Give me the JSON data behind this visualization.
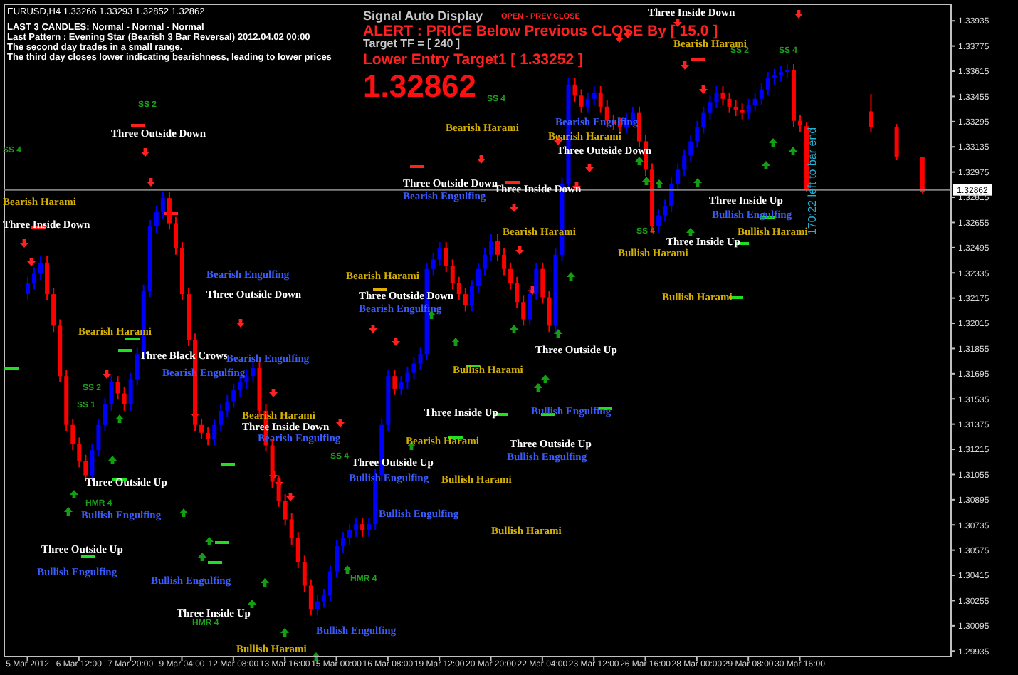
{
  "chart_data": {
    "type": "candlestick",
    "title": "EURUSD,H4  1.33266 1.33293 1.32852 1.32862",
    "categories": [
      "5 Mar 2012",
      null,
      null,
      null,
      null,
      null,
      null,
      null,
      "6 Mar 12:00",
      null,
      null,
      null,
      null,
      null,
      null,
      null,
      "7 Mar 20:00",
      null,
      null,
      null,
      null,
      null,
      null,
      null,
      "9 Mar 04:00",
      null,
      null,
      null,
      null,
      null,
      null,
      null,
      "12 Mar 08:00",
      null,
      null,
      null,
      null,
      null,
      null,
      null,
      "13 Mar 16:00",
      null,
      null,
      null,
      null,
      null,
      null,
      null,
      "15 Mar 00:00",
      null,
      null,
      null,
      null,
      null,
      null,
      null,
      "16 Mar 08:00",
      null,
      null,
      null,
      null,
      null,
      null,
      null,
      "19 Mar 12:00",
      null,
      null,
      null,
      null,
      null,
      null,
      null,
      "20 Mar 20:00",
      null,
      null,
      null,
      null,
      null,
      null,
      null,
      "22 Mar 04:00",
      null,
      null,
      null,
      null,
      null,
      null,
      null,
      "23 Mar 12:00",
      null,
      null,
      null,
      null,
      null,
      null,
      null,
      "26 Mar 16:00",
      null,
      null,
      null,
      null,
      null,
      null,
      null,
      "28 Mar 00:00",
      null,
      null,
      null,
      null,
      null,
      null,
      null,
      "29 Mar 08:00",
      null,
      null,
      null,
      null,
      null,
      null,
      null,
      "30 Mar 16:00",
      null,
      null,
      null,
      null,
      null,
      null,
      null,
      null,
      null,
      null,
      null,
      null,
      null,
      null,
      null,
      null,
      null,
      null,
      null,
      null,
      null,
      null,
      null
    ],
    "ohlc": [
      [
        1.322,
        1.3231,
        1.3216,
        1.3227
      ],
      [
        1.3227,
        1.3237,
        1.3223,
        1.3233
      ],
      [
        1.3233,
        1.3244,
        1.3229,
        1.324
      ],
      [
        1.324,
        1.3244,
        1.3216,
        1.322
      ],
      [
        1.322,
        1.3224,
        1.3196,
        1.32
      ],
      [
        1.32,
        1.3204,
        1.3164,
        1.3168
      ],
      [
        1.3168,
        1.3172,
        1.3133,
        1.3137
      ],
      [
        1.3137,
        1.3141,
        1.3121,
        1.3125
      ],
      [
        1.3125,
        1.3129,
        1.311,
        1.3114
      ],
      [
        1.3114,
        1.3118,
        1.3101,
        1.3105
      ],
      [
        1.3105,
        1.3125,
        1.3101,
        1.3121
      ],
      [
        1.3121,
        1.3141,
        1.3117,
        1.3137
      ],
      [
        1.3137,
        1.3154,
        1.3133,
        1.315
      ],
      [
        1.315,
        1.3168,
        1.3146,
        1.3164
      ],
      [
        1.3164,
        1.3168,
        1.3153,
        1.3157
      ],
      [
        1.3157,
        1.3161,
        1.3146,
        1.315
      ],
      [
        1.315,
        1.317,
        1.3146,
        1.3166
      ],
      [
        1.3166,
        1.3186,
        1.3162,
        1.3182
      ],
      [
        1.3182,
        1.3226,
        1.3178,
        1.3222
      ],
      [
        1.3222,
        1.3267,
        1.3218,
        1.3263
      ],
      [
        1.3263,
        1.3276,
        1.3259,
        1.3272
      ],
      [
        1.3272,
        1.3285,
        1.3268,
        1.3281
      ],
      [
        1.3281,
        1.3285,
        1.3261,
        1.3265
      ],
      [
        1.3265,
        1.3269,
        1.3245,
        1.3249
      ],
      [
        1.3249,
        1.3253,
        1.3216,
        1.322
      ],
      [
        1.322,
        1.3224,
        1.3187,
        1.3191
      ],
      [
        1.3191,
        1.3195,
        1.3133,
        1.3137
      ],
      [
        1.3137,
        1.3141,
        1.3128,
        1.3132
      ],
      [
        1.3132,
        1.3136,
        1.3124,
        1.3128
      ],
      [
        1.3128,
        1.3141,
        1.3124,
        1.3137
      ],
      [
        1.3137,
        1.315,
        1.3133,
        1.3146
      ],
      [
        1.3146,
        1.3156,
        1.3142,
        1.3152
      ],
      [
        1.3152,
        1.3163,
        1.3148,
        1.3159
      ],
      [
        1.3159,
        1.3168,
        1.3155,
        1.3164
      ],
      [
        1.3164,
        1.3172,
        1.316,
        1.3168
      ],
      [
        1.3168,
        1.3177,
        1.3164,
        1.3173
      ],
      [
        1.3173,
        1.3177,
        1.3142,
        1.3146
      ],
      [
        1.3146,
        1.315,
        1.312,
        1.3124
      ],
      [
        1.3124,
        1.3128,
        1.3097,
        1.3101
      ],
      [
        1.3101,
        1.3105,
        1.3085,
        1.3089
      ],
      [
        1.3089,
        1.3093,
        1.3073,
        1.3077
      ],
      [
        1.3077,
        1.3081,
        1.3061,
        1.3065
      ],
      [
        1.3065,
        1.3069,
        1.3046,
        1.305
      ],
      [
        1.305,
        1.3054,
        1.3031,
        1.3035
      ],
      [
        1.3035,
        1.3039,
        1.3016,
        1.302
      ],
      [
        1.302,
        1.3029,
        1.3016,
        1.3025
      ],
      [
        1.3025,
        1.3033,
        1.3021,
        1.3029
      ],
      [
        1.3029,
        1.3048,
        1.3025,
        1.3044
      ],
      [
        1.3044,
        1.3064,
        1.304,
        1.306
      ],
      [
        1.306,
        1.3069,
        1.3056,
        1.3065
      ],
      [
        1.3065,
        1.3074,
        1.3061,
        1.307
      ],
      [
        1.307,
        1.3078,
        1.3066,
        1.3074
      ],
      [
        1.3074,
        1.3078,
        1.3066,
        1.307
      ],
      [
        1.307,
        1.3078,
        1.3066,
        1.3074
      ],
      [
        1.3074,
        1.3109,
        1.307,
        1.3105
      ],
      [
        1.3105,
        1.3141,
        1.3101,
        1.3137
      ],
      [
        1.3137,
        1.3172,
        1.3133,
        1.3168
      ],
      [
        1.3168,
        1.3172,
        1.3156,
        1.316
      ],
      [
        1.316,
        1.3168,
        1.3156,
        1.3164
      ],
      [
        1.3164,
        1.3174,
        1.316,
        1.317
      ],
      [
        1.317,
        1.318,
        1.3166,
        1.3176
      ],
      [
        1.3176,
        1.3186,
        1.3172,
        1.3182
      ],
      [
        1.3182,
        1.324,
        1.3178,
        1.3236
      ],
      [
        1.3236,
        1.3246,
        1.3232,
        1.3242
      ],
      [
        1.3242,
        1.3253,
        1.3238,
        1.3249
      ],
      [
        1.3249,
        1.3253,
        1.3234,
        1.3238
      ],
      [
        1.3238,
        1.3242,
        1.3223,
        1.3227
      ],
      [
        1.3227,
        1.3231,
        1.3216,
        1.322
      ],
      [
        1.322,
        1.3224,
        1.3209,
        1.3213
      ],
      [
        1.3213,
        1.3229,
        1.3209,
        1.3225
      ],
      [
        1.3225,
        1.324,
        1.3221,
        1.3236
      ],
      [
        1.3236,
        1.3249,
        1.3232,
        1.3245
      ],
      [
        1.3245,
        1.3258,
        1.3241,
        1.3254
      ],
      [
        1.3254,
        1.3258,
        1.3241,
        1.3245
      ],
      [
        1.3245,
        1.3249,
        1.3232,
        1.3236
      ],
      [
        1.3236,
        1.324,
        1.3223,
        1.3227
      ],
      [
        1.3227,
        1.3231,
        1.3211,
        1.3215
      ],
      [
        1.3215,
        1.3219,
        1.32,
        1.3204
      ],
      [
        1.3204,
        1.3224,
        1.32,
        1.322
      ],
      [
        1.322,
        1.324,
        1.3216,
        1.3236
      ],
      [
        1.3236,
        1.324,
        1.3214,
        1.3218
      ],
      [
        1.3218,
        1.3222,
        1.3196,
        1.32
      ],
      [
        1.32,
        1.3249,
        1.3196,
        1.3245
      ],
      [
        1.3245,
        1.3294,
        1.3241,
        1.329
      ],
      [
        1.329,
        1.3357,
        1.3286,
        1.3353
      ],
      [
        1.3353,
        1.3357,
        1.3342,
        1.3346
      ],
      [
        1.3346,
        1.335,
        1.3335,
        1.3339
      ],
      [
        1.3339,
        1.3348,
        1.3335,
        1.3344
      ],
      [
        1.3344,
        1.3352,
        1.334,
        1.3348
      ],
      [
        1.3348,
        1.3352,
        1.3335,
        1.3339
      ],
      [
        1.3339,
        1.3343,
        1.3326,
        1.333
      ],
      [
        1.333,
        1.3334,
        1.3324,
        1.3328
      ],
      [
        1.3328,
        1.3332,
        1.3322,
        1.3326
      ],
      [
        1.3326,
        1.3335,
        1.3322,
        1.3331
      ],
      [
        1.3331,
        1.3339,
        1.3327,
        1.3335
      ],
      [
        1.3335,
        1.3339,
        1.3313,
        1.3317
      ],
      [
        1.3317,
        1.3321,
        1.3295,
        1.3299
      ],
      [
        1.3299,
        1.3303,
        1.3259,
        1.3263
      ],
      [
        1.3263,
        1.3274,
        1.3259,
        1.327
      ],
      [
        1.327,
        1.328,
        1.3266,
        1.3276
      ],
      [
        1.3276,
        1.3294,
        1.3272,
        1.329
      ],
      [
        1.329,
        1.3303,
        1.3286,
        1.3299
      ],
      [
        1.3299,
        1.3312,
        1.3295,
        1.3308
      ],
      [
        1.3308,
        1.3321,
        1.3304,
        1.3317
      ],
      [
        1.3317,
        1.333,
        1.3313,
        1.3326
      ],
      [
        1.3326,
        1.3339,
        1.3322,
        1.3335
      ],
      [
        1.3335,
        1.3346,
        1.3331,
        1.3342
      ],
      [
        1.3342,
        1.3352,
        1.3338,
        1.3348
      ],
      [
        1.3348,
        1.3352,
        1.334,
        1.3344
      ],
      [
        1.3344,
        1.3348,
        1.3335,
        1.3339
      ],
      [
        1.3339,
        1.3343,
        1.3333,
        1.3337
      ],
      [
        1.3337,
        1.3341,
        1.3331,
        1.3335
      ],
      [
        1.3335,
        1.3344,
        1.3331,
        1.334
      ],
      [
        1.334,
        1.3348,
        1.3336,
        1.3344
      ],
      [
        1.3344,
        1.3354,
        1.334,
        1.335
      ],
      [
        1.335,
        1.3361,
        1.3346,
        1.3357
      ],
      [
        1.3357,
        1.3363,
        1.3353,
        1.3359
      ],
      [
        1.3359,
        1.3365,
        1.3355,
        1.3361
      ],
      [
        1.3361,
        1.3366,
        1.3357,
        1.3362
      ],
      [
        1.3362,
        1.3366,
        1.3326,
        1.333
      ],
      [
        1.333,
        1.3334,
        1.3323,
        1.3327
      ],
      [
        1.33266,
        1.33293,
        1.32852,
        1.32862
      ],
      null,
      null,
      null,
      null,
      null,
      null,
      null,
      null,
      null,
      [
        1.3336,
        1.3347,
        1.3323,
        1.3326
      ],
      null,
      null,
      null,
      [
        1.3326,
        1.3328,
        1.3305,
        1.3307
      ],
      null,
      null,
      null,
      [
        1.3307,
        1.3307,
        1.3284,
        1.3285
      ],
      null,
      null,
      null,
      null
    ],
    "colors": [
      "#0000ff",
      "#0000ff",
      "#0000ff",
      "#ff0000",
      "#ff0000",
      "#ff0000",
      "#ff0000",
      "#ff0000",
      "#ff0000",
      "#ff0000",
      "#0000ff",
      "#0000ff",
      "#0000ff",
      "#0000ff",
      "#ff0000",
      "#ff0000",
      "#0000ff",
      "#0000ff",
      "#0000ff",
      "#0000ff",
      "#0000ff",
      "#0000ff",
      "#ff0000",
      "#ff0000",
      "#ff0000",
      "#ff0000",
      "#ff0000",
      "#ff0000",
      "#ff0000",
      "#0000ff",
      "#0000ff",
      "#0000ff",
      "#0000ff",
      "#0000ff",
      "#0000ff",
      "#0000ff",
      "#ff0000",
      "#ff0000",
      "#ff0000",
      "#ff0000",
      "#ff0000",
      "#ff0000",
      "#ff0000",
      "#ff0000",
      "#ff0000",
      "#0000ff",
      "#0000ff",
      "#0000ff",
      "#0000ff",
      "#0000ff",
      "#0000ff",
      "#0000ff",
      "#ff0000",
      "#0000ff",
      "#0000ff",
      "#0000ff",
      "#0000ff",
      "#ff0000",
      "#0000ff",
      "#0000ff",
      "#0000ff",
      "#0000ff",
      "#0000ff",
      "#0000ff",
      "#0000ff",
      "#ff0000",
      "#ff0000",
      "#ff0000",
      "#ff0000",
      "#0000ff",
      "#0000ff",
      "#0000ff",
      "#0000ff",
      "#ff0000",
      "#ff0000",
      "#ff0000",
      "#ff0000",
      "#ff0000",
      "#0000ff",
      "#0000ff",
      "#ff0000",
      "#ff0000",
      "#0000ff",
      "#0000ff",
      "#0000ff",
      "#ff0000",
      "#ff0000",
      "#0000ff",
      "#0000ff",
      "#ff0000",
      "#ff0000",
      "#ff0000",
      "#ff0000",
      "#0000ff",
      "#0000ff",
      "#ff0000",
      "#ff0000",
      "#ff0000",
      "#0000ff",
      "#0000ff",
      "#0000ff",
      "#0000ff",
      "#0000ff",
      "#0000ff",
      "#0000ff",
      "#0000ff",
      "#0000ff",
      "#0000ff",
      "#ff0000",
      "#ff0000",
      "#ff0000",
      "#ff0000",
      "#0000ff",
      "#0000ff",
      "#0000ff",
      "#0000ff",
      "#0000ff",
      "#0000ff",
      "#0000ff",
      "#ff0000",
      "#ff0000",
      "#ff0000",
      null,
      null,
      null,
      null,
      null,
      null,
      null,
      null,
      null,
      "#ff0000",
      null,
      null,
      null,
      "#ff0000",
      null,
      null,
      null,
      "#ff0000",
      null,
      null,
      null,
      null
    ],
    "ylim": [
      1.299,
      1.3404
    ],
    "yticks": [
      1.29935,
      1.30095,
      1.30255,
      1.30415,
      1.30575,
      1.30735,
      1.30895,
      1.31055,
      1.31215,
      1.31375,
      1.31535,
      1.31695,
      1.31855,
      1.32015,
      1.32175,
      1.32335,
      1.32495,
      1.32655,
      1.32815,
      1.32975,
      1.33135,
      1.33295,
      1.33455,
      1.33615,
      1.33775,
      1.33935
    ],
    "ref_lines": [
      {
        "axis": "y",
        "value": 1.32862,
        "label": "1.32862",
        "color": "#808080"
      }
    ],
    "annotations": [
      "LAST 3 CANDLES: Normal - Normal - Normal",
      "Last Pattern : Evening Star (Bearish 3 Bar Reversal) 2012.04.02 00:00",
      "The second day trades in a small range.",
      "The third day closes lower indicating bearishness, leading to lower prices",
      "Signal Auto Display",
      "OPEN - PREV.CLOSE",
      "ALERT : PRICE Below Previous CLOSE By [ 15.0 ]",
      "Target  TF = [ 240 ]",
      "Lower Entry Target1 [ 1.33252 ]",
      "1.32862",
      "170:22 left to bar end",
      "Three Outside Down",
      "Bearish Harami",
      "Three Inside Down",
      "Bearish Harami",
      "Bearish Harami",
      "Three Inside Down",
      "Bearish Engulfing",
      "Three Outside Down",
      "Three Outside Down",
      "Bearish Engulfing",
      "Three Inside Down",
      "Bearish Engulfing",
      "Bearish Harami",
      "Three Outside Down",
      "Bearish Harami",
      "Three Outside Down",
      "Bearish Engulfing",
      "Bearish Harami",
      "Bearish Harami",
      "Three Inside Up",
      "Bullish Engulfing",
      "Bullish Harami",
      "Three Inside Up",
      "Bullish Harami",
      "Bullish Harami",
      "Three Black Crows",
      "Bearish Engulfing",
      "Bearish Engulfing",
      "Bearish Harami",
      "Three Inside Down",
      "Bearish Engulfing",
      "Bearish Harami",
      "Bullish Harami",
      "Three Inside Up",
      "Three Outside Up",
      "Bullish Engulfing",
      "Bullish Harami",
      "Bullish Engulfing",
      "Three Outside Up",
      "Bullish Engulfing",
      "Three Outside Up",
      "Bullish Engulfing",
      "Bullish Engulfing",
      "Three Inside Up",
      "Bullish Engulfing",
      "Bullish Harami",
      "Three Outside Up",
      "Bullish Engulfing",
      "Three Outside Up",
      "Bullish Engulfing",
      "Bullish Harami",
      "SS 2",
      "SS 4",
      "SS 2",
      "SS 4",
      "SS 4",
      "SS 4",
      "SS 2",
      "SS 1",
      "HMR 4",
      "SS 4",
      "HMR 4",
      "HMR 4"
    ]
  }
}
